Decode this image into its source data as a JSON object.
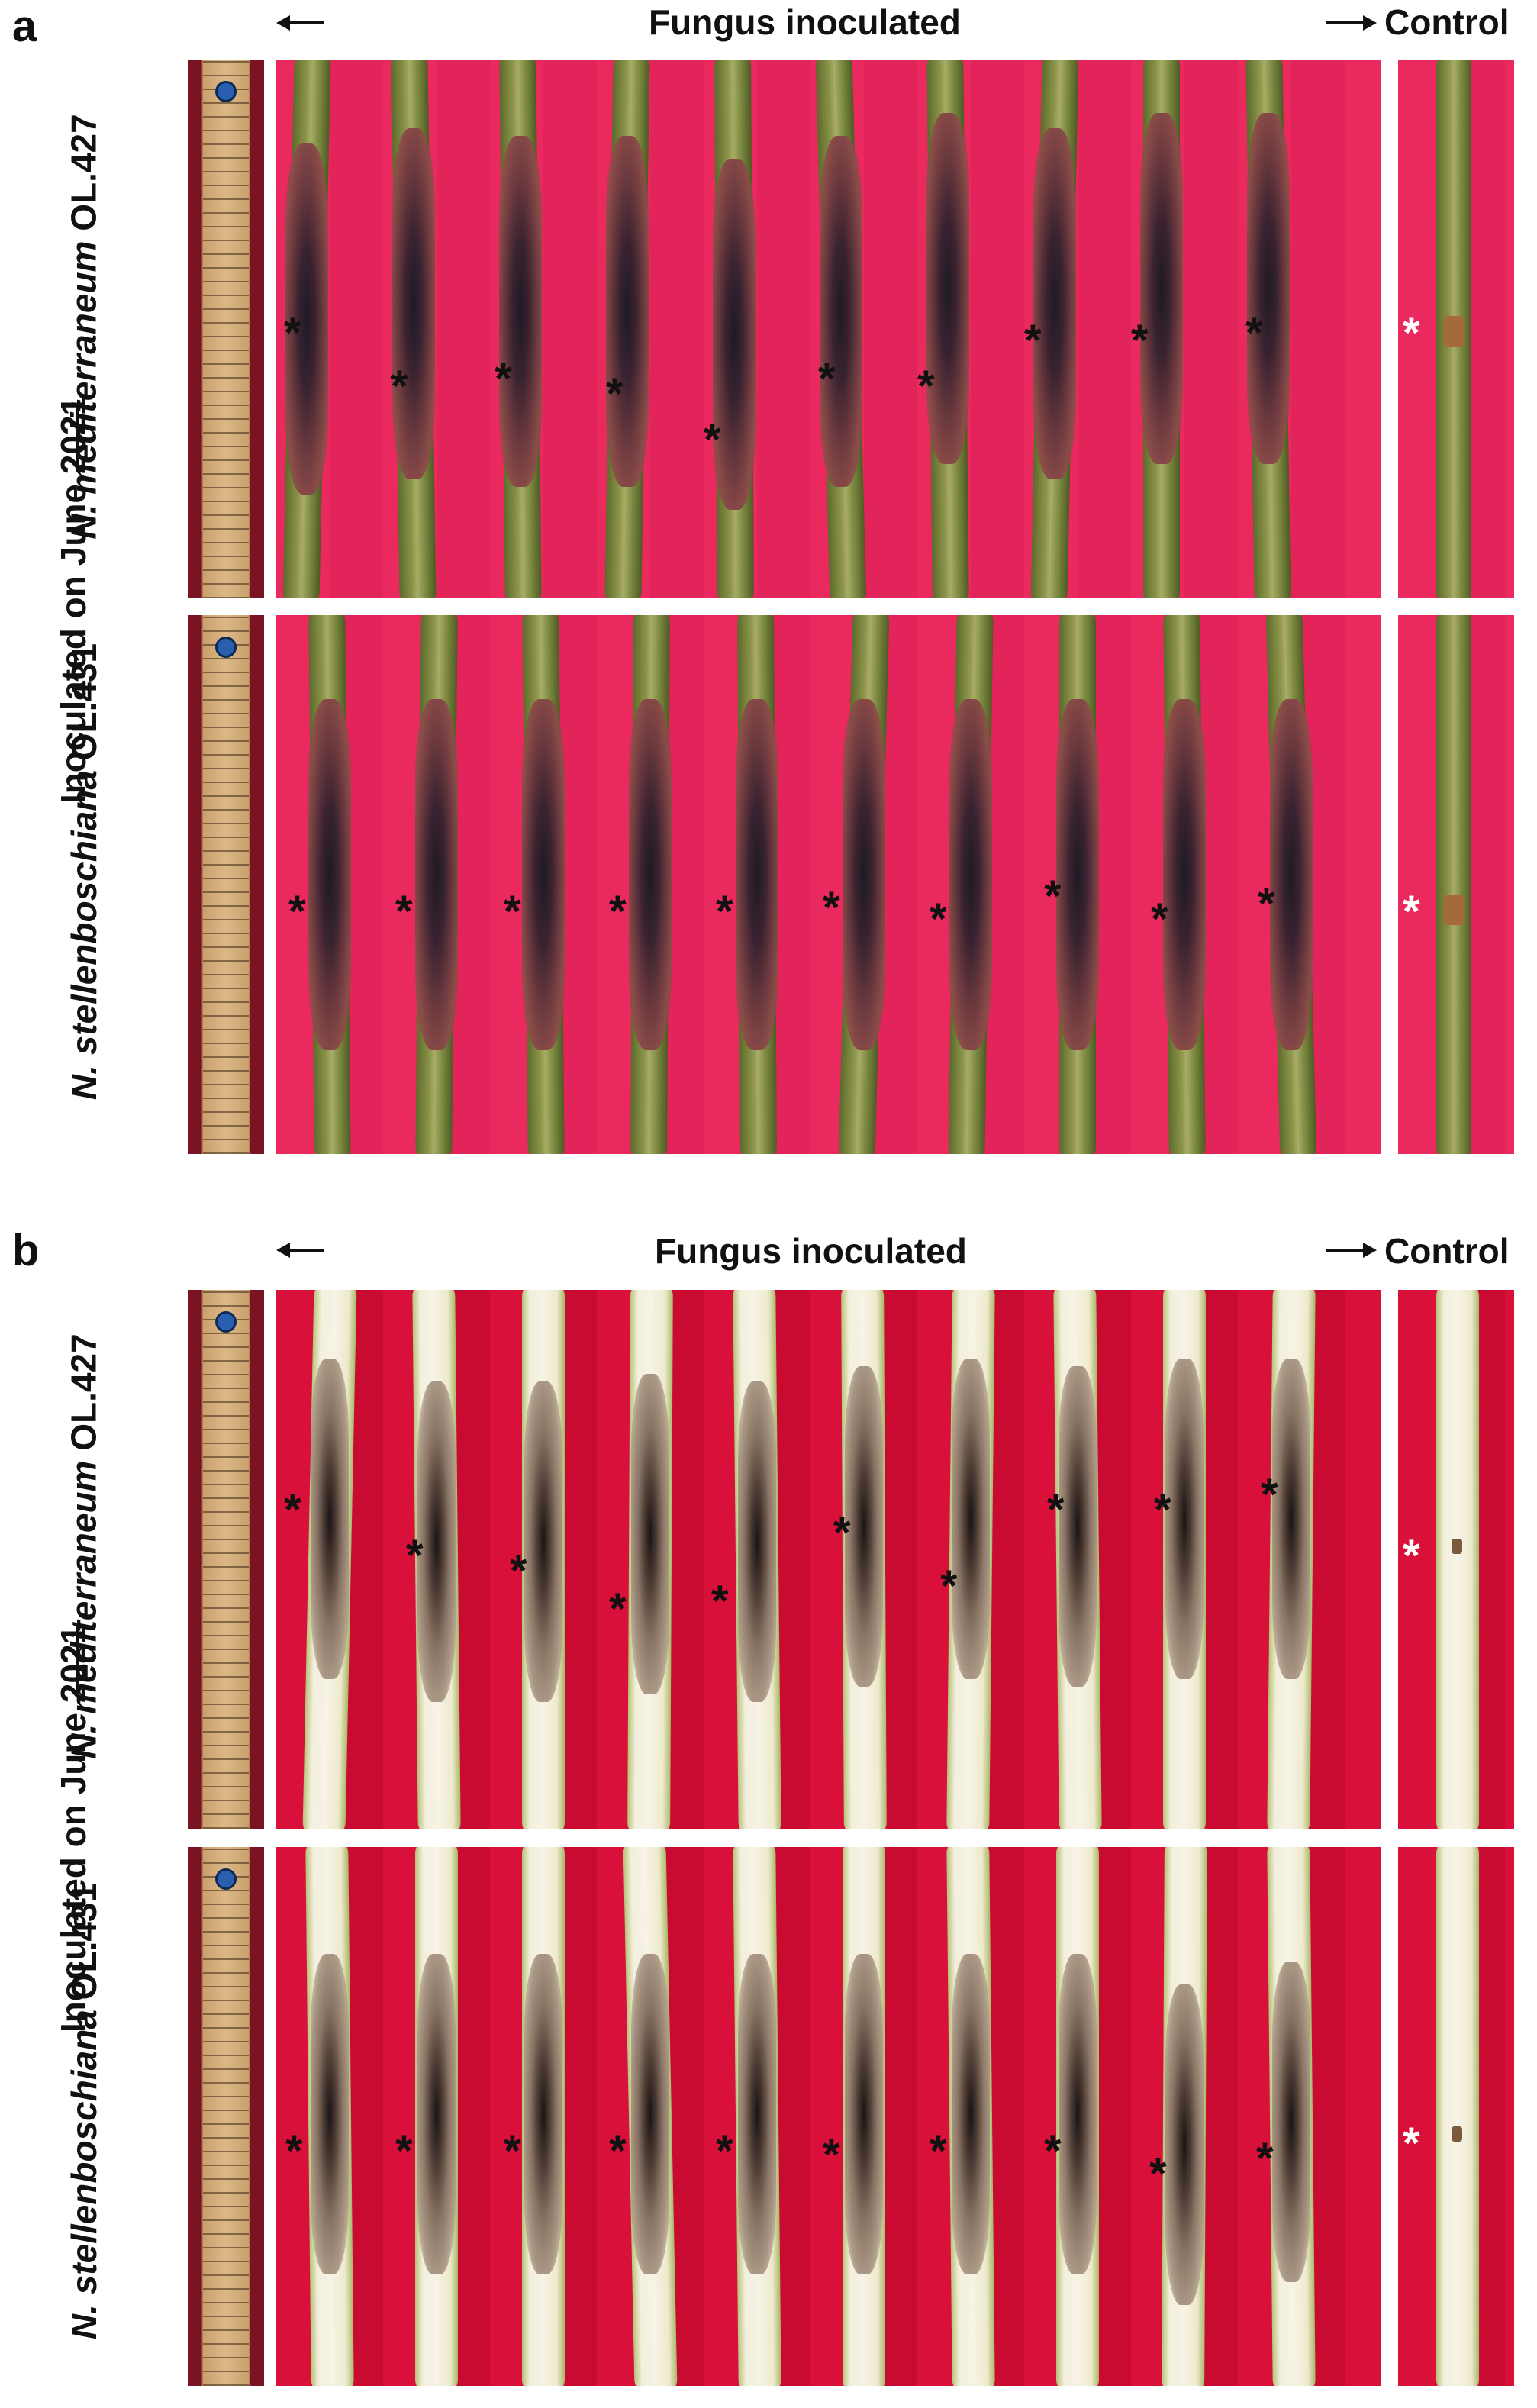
{
  "figure": {
    "panels": [
      {
        "letter": "a",
        "header_left": "Fungus inoculated",
        "header_right": "Control",
        "side_label": "Inoculated on June 2021",
        "rows": [
          {
            "species_italic": "N. mediterraneum",
            "strain": "OL.427"
          },
          {
            "species_italic": "N. stellenboschiana",
            "strain": "OL.431"
          }
        ],
        "asterisk": "*"
      },
      {
        "letter": "b",
        "header_left": "Fungus inoculated",
        "header_right": "Control",
        "side_label": "Inoculated on June 2021",
        "rows": [
          {
            "species_italic": "N. mediterraneum",
            "strain": "OL.427"
          },
          {
            "species_italic": "N. stellenboschiana",
            "strain": "OL.431"
          }
        ],
        "asterisk": "*"
      }
    ]
  },
  "colors": {
    "background_a": "#ea2a5f",
    "background_b": "#d8103a",
    "bark": "#7f8c42",
    "wood": "#f3efdc",
    "lesion": "#3a2330",
    "control_asterisk": "#ffffff"
  }
}
